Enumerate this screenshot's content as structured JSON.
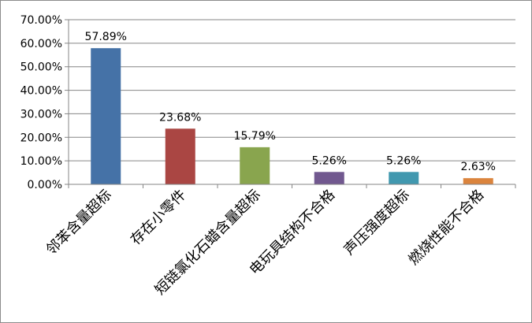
{
  "chart_data": {
    "type": "bar",
    "categories": [
      "邻苯含量超标",
      "存在小零件",
      "短链氯化石蜡含量超标",
      "电玩具结构不合格",
      "声压强度超标",
      "燃烧性能不合格"
    ],
    "values": [
      57.89,
      23.68,
      15.79,
      5.26,
      5.26,
      2.63
    ],
    "data_labels": [
      "57.89%",
      "23.68%",
      "15.79%",
      "5.26%",
      "5.26%",
      "2.63%"
    ],
    "colors": [
      "#4572a7",
      "#aa4643",
      "#89a54e",
      "#71588f",
      "#4198af",
      "#db843d"
    ],
    "y_ticks": [
      0,
      10,
      20,
      30,
      40,
      50,
      60,
      70
    ],
    "y_tick_labels": [
      "0.00%",
      "10.00%",
      "20.00%",
      "30.00%",
      "40.00%",
      "50.00%",
      "60.00%",
      "70.00%"
    ],
    "ylim": [
      0,
      70
    ],
    "grid": true,
    "legend": "none",
    "title": "",
    "xlabel": "",
    "ylabel": ""
  }
}
